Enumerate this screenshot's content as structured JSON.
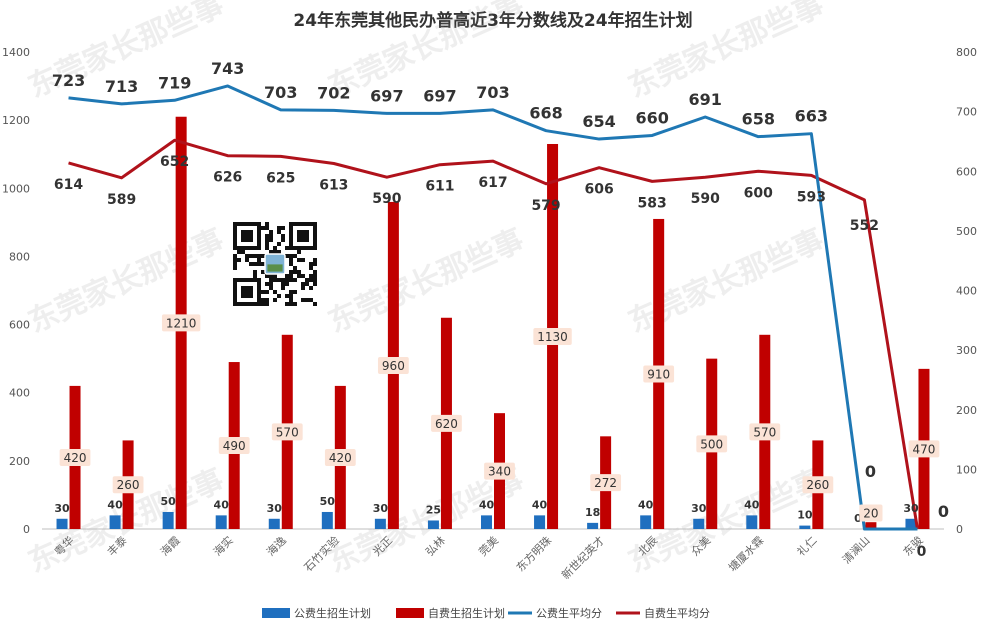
{
  "chart_data": {
    "type": "bar-line",
    "title": "24年东莞其他民办普高近3年分数线及24年招生计划",
    "categories": [
      "粤华",
      "丰泰",
      "海霞",
      "海实",
      "海逸",
      "石竹实验",
      "光正",
      "弘林",
      "莞美",
      "东方明珠",
      "新世纪英才",
      "北辰",
      "众美",
      "塘厦水霖",
      "礼仁",
      "清澜山",
      "东骏"
    ],
    "y_left": {
      "min": 0,
      "max": 1400,
      "ticks": [
        "0",
        "200",
        "400",
        "600",
        "800",
        "1000",
        "1200",
        "1400"
      ]
    },
    "y_right": {
      "min": 0,
      "max": 800,
      "ticks": [
        "0",
        "100",
        "200",
        "300",
        "400",
        "500",
        "600",
        "700",
        "800"
      ]
    },
    "grid": false,
    "legend_position": "bottom",
    "colors": {
      "public_bar": "#1f6fbf",
      "private_bar": "#c00000",
      "public_line": "#1f78b4",
      "private_line": "#b0121b",
      "label_box": "#fbe3d6"
    },
    "series": [
      {
        "name": "公费生招生计划",
        "kind": "bar",
        "axis": "left",
        "values": [
          30,
          40,
          50,
          40,
          30,
          50,
          30,
          25,
          40,
          40,
          18,
          40,
          30,
          40,
          10,
          0,
          30
        ],
        "labels": [
          "30",
          "40",
          "50",
          "40",
          "30",
          "50",
          "30",
          "25",
          "40",
          "40",
          "18",
          "40",
          "30",
          "40",
          "10",
          "0",
          "30"
        ]
      },
      {
        "name": "自费生招生计划",
        "kind": "bar",
        "axis": "left",
        "values": [
          420,
          260,
          1210,
          490,
          570,
          420,
          960,
          620,
          340,
          1130,
          272,
          910,
          500,
          570,
          260,
          20,
          470
        ],
        "labels": [
          "420",
          "260",
          "1210",
          "490",
          "570",
          "420",
          "960",
          "620",
          "340",
          "1130",
          "272",
          "910",
          "500",
          "570",
          "260",
          "20",
          "470"
        ]
      },
      {
        "name": "公费生平均分",
        "kind": "line",
        "axis": "right",
        "values": [
          723,
          713,
          719,
          743,
          703,
          702,
          697,
          697,
          703,
          668,
          654,
          660,
          691,
          658,
          663,
          0,
          0
        ],
        "labels": [
          "723",
          "713",
          "719",
          "743",
          "703",
          "702",
          "697",
          "697",
          "703",
          "668",
          "654",
          "660",
          "691",
          "658",
          "663",
          "0",
          "0"
        ]
      },
      {
        "name": "自费生平均分",
        "kind": "line",
        "axis": "right",
        "values": [
          614,
          589,
          652,
          626,
          625,
          613,
          590,
          611,
          617,
          579,
          606,
          583,
          590,
          600,
          593,
          552,
          0
        ],
        "labels": [
          "614",
          "589",
          "652",
          "626",
          "625",
          "613",
          "590",
          "611",
          "617",
          "579",
          "606",
          "583",
          "590",
          "600",
          "593",
          "552",
          "0"
        ]
      }
    ],
    "watermark": "东莞家长那些事"
  }
}
